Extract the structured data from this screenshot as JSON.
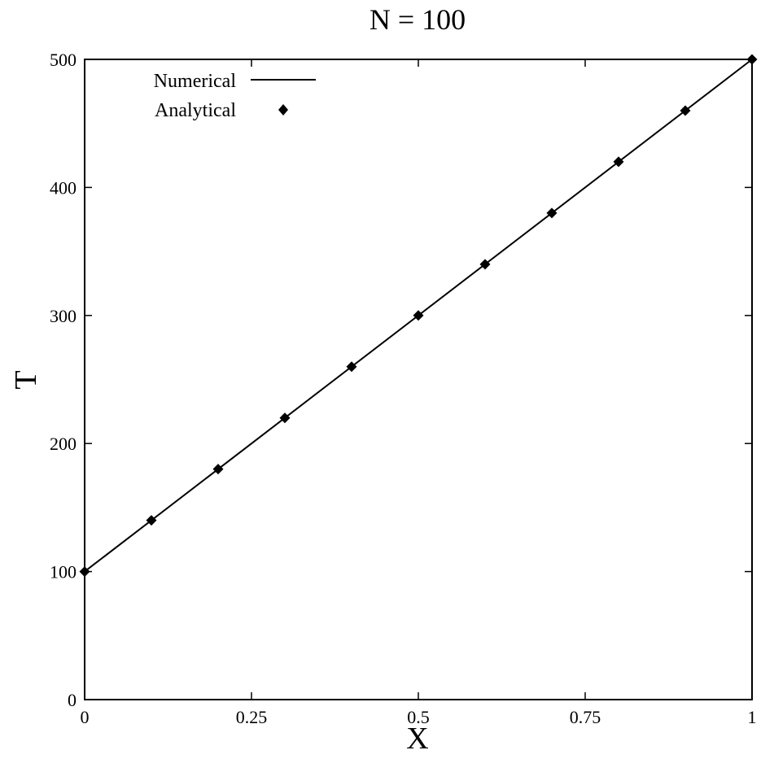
{
  "chart_data": {
    "type": "line",
    "title": "N = 100",
    "xlabel": "X",
    "ylabel": "T",
    "xlim": [
      0,
      1
    ],
    "ylim": [
      0,
      500
    ],
    "x_ticks": [
      0,
      0.25,
      0.5,
      0.75,
      1
    ],
    "x_tick_labels": [
      "0",
      "0.25",
      "0.5",
      "0.75",
      "1"
    ],
    "y_ticks": [
      0,
      100,
      200,
      300,
      400,
      500
    ],
    "y_tick_labels": [
      "0",
      "100",
      "200",
      "300",
      "400",
      "500"
    ],
    "grid": false,
    "legend_position": "top-left",
    "series": [
      {
        "name": "Numerical",
        "style": "line",
        "color": "#000000",
        "x": [
          0,
          1
        ],
        "y": [
          100,
          500
        ]
      },
      {
        "name": "Analytical",
        "style": "marker",
        "marker": "diamond",
        "color": "#000000",
        "x": [
          0,
          0.1,
          0.2,
          0.3,
          0.4,
          0.5,
          0.6,
          0.7,
          0.8,
          0.9,
          1
        ],
        "y": [
          100,
          140,
          180,
          220,
          260,
          300,
          340,
          380,
          420,
          460,
          500
        ]
      }
    ]
  }
}
